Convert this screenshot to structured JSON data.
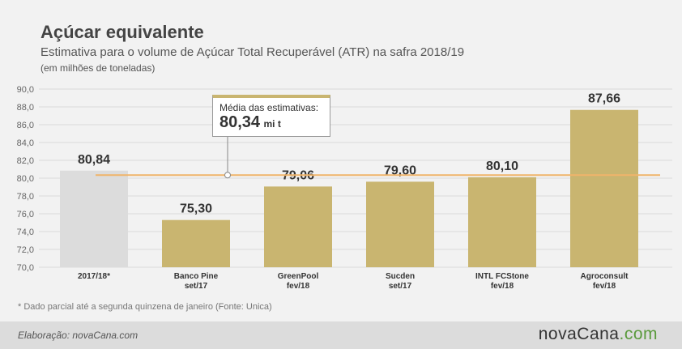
{
  "header": {
    "title": "Açúcar equivalente",
    "subtitle": "Estimativa para o volume de Açúcar Total Recuperável (ATR) na safra 2018/19",
    "unit": "(em milhões de toneladas)"
  },
  "note": "* Dado parcial até a segunda quinzena de janeiro (Fonte: Unica)",
  "footer": {
    "credit": "Elaboração: novaCana.com",
    "logo_main": "novaCana",
    "logo_ext": ".com"
  },
  "callout": {
    "label": "Média das estimativas:",
    "value": "80,34",
    "unit": "mi t"
  },
  "colors": {
    "bar": "#c9b570",
    "bar_partial": "#dcdcdc",
    "mean_line": "#f0b46a",
    "grid": "#d9d9d9"
  },
  "chart_data": {
    "type": "bar",
    "categories": [
      [
        "2017/18*"
      ],
      [
        "Banco Pine",
        "set/17"
      ],
      [
        "GreenPool",
        "fev/18"
      ],
      [
        "Sucden",
        "set/17"
      ],
      [
        "INTL FCStone",
        "fev/18"
      ],
      [
        "Agroconsult",
        "fev/18"
      ]
    ],
    "values": [
      80.84,
      75.3,
      79.06,
      79.6,
      80.1,
      87.66
    ],
    "value_labels": [
      "80,84",
      "75,30",
      "79,06",
      "79,60",
      "80,10",
      "87,66"
    ],
    "mean": 80.34,
    "ylim": [
      70,
      90
    ],
    "yticks": [
      70,
      72,
      74,
      76,
      78,
      80,
      82,
      84,
      86,
      88,
      90
    ],
    "ytick_labels": [
      "70,0",
      "72,0",
      "74,0",
      "76,0",
      "78,0",
      "80,0",
      "82,0",
      "84,0",
      "86,0",
      "88,0",
      "90,0"
    ],
    "grid": true
  }
}
